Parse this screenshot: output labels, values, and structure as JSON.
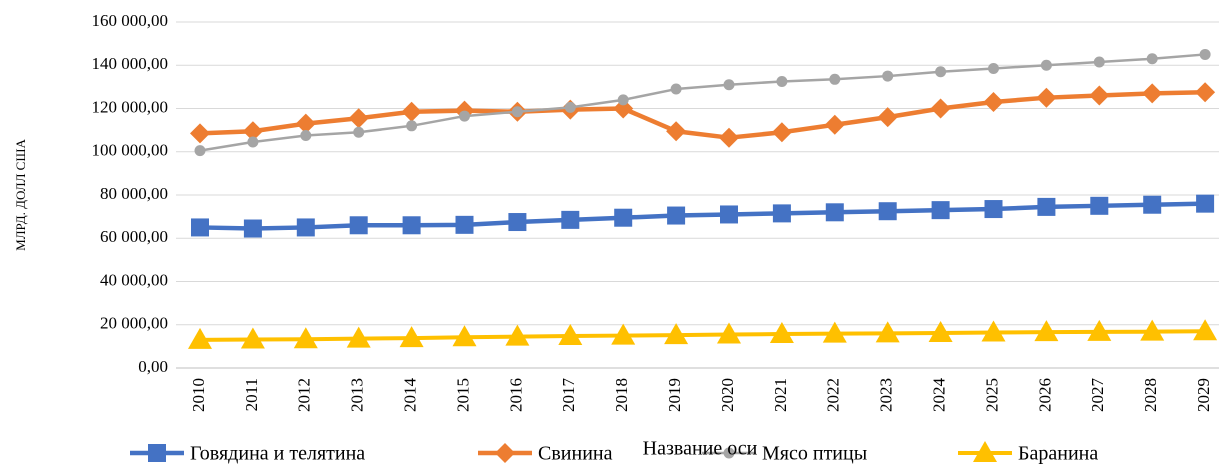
{
  "chart_data": {
    "type": "line",
    "y_label": "МЛРД. ДОЛЛ США",
    "x_label": "Название оси",
    "categories": [
      "2010",
      "2011",
      "2012",
      "2013",
      "2014",
      "2015",
      "2016",
      "2017",
      "2018",
      "2019",
      "2020",
      "2021",
      "2022",
      "2023",
      "2024",
      "2025",
      "2026",
      "2027",
      "2028",
      "2029"
    ],
    "series": [
      {
        "name": "Говядина и телятина",
        "color": "#4472c4",
        "marker": "square",
        "values": [
          65000,
          64500,
          65000,
          66000,
          66000,
          66200,
          67500,
          68500,
          69500,
          70500,
          71000,
          71500,
          72000,
          72500,
          73000,
          73500,
          74500,
          75000,
          75500,
          76000
        ]
      },
      {
        "name": "Свинина",
        "color": "#ed7d31",
        "marker": "diamond",
        "values": [
          108500,
          109500,
          113000,
          115500,
          118500,
          119000,
          118500,
          119500,
          120000,
          109500,
          106500,
          109000,
          112500,
          116000,
          120000,
          123000,
          125000,
          126000,
          127000,
          127500
        ]
      },
      {
        "name": "Мясо птицы",
        "color": "#a5a5a5",
        "marker": "circle",
        "values": [
          100500,
          104500,
          107500,
          109000,
          112000,
          116500,
          118500,
          120500,
          124000,
          129000,
          131000,
          132500,
          133500,
          135000,
          137000,
          138500,
          140000,
          141500,
          143000,
          145000
        ]
      },
      {
        "name": "Баранина",
        "color": "#ffc000",
        "marker": "triangle",
        "values": [
          13000,
          13200,
          13300,
          13600,
          13800,
          14200,
          14500,
          14800,
          15000,
          15200,
          15500,
          15700,
          15900,
          16000,
          16200,
          16400,
          16600,
          16700,
          16800,
          17000
        ]
      }
    ],
    "ylim": [
      0,
      160000
    ],
    "yticks": [
      {
        "value": 0,
        "label": "0,00"
      },
      {
        "value": 20000,
        "label": "20 000,00"
      },
      {
        "value": 40000,
        "label": "40 000,00"
      },
      {
        "value": 60000,
        "label": "60 000,00"
      },
      {
        "value": 80000,
        "label": "80 000,00"
      },
      {
        "value": 100000,
        "label": "100 000,00"
      },
      {
        "value": 120000,
        "label": "120 000,00"
      },
      {
        "value": 140000,
        "label": "140 000,00"
      },
      {
        "value": 160000,
        "label": "160 000,00"
      }
    ],
    "grid": true,
    "legend": "bottom"
  }
}
